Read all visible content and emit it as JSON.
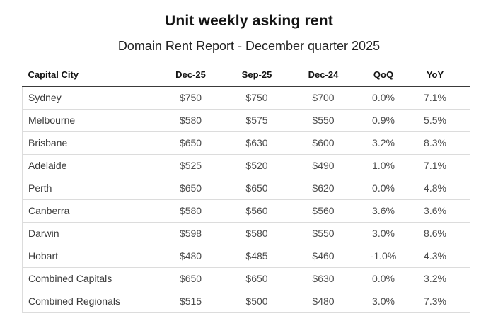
{
  "header": {
    "title": "Unit weekly asking rent",
    "subtitle": "Domain Rent Report - December quarter 2025"
  },
  "chart_data": {
    "type": "table",
    "title": "Unit weekly asking rent",
    "subtitle": "Domain Rent Report - December quarter 2025",
    "columns": [
      "Capital City",
      "Dec-25",
      "Sep-25",
      "Dec-24",
      "QoQ",
      "YoY"
    ],
    "rows": [
      [
        "Sydney",
        "$750",
        "$750",
        "$700",
        "0.0%",
        "7.1%"
      ],
      [
        "Melbourne",
        "$580",
        "$575",
        "$550",
        "0.9%",
        "5.5%"
      ],
      [
        "Brisbane",
        "$650",
        "$630",
        "$600",
        "3.2%",
        "8.3%"
      ],
      [
        "Adelaide",
        "$525",
        "$520",
        "$490",
        "1.0%",
        "7.1%"
      ],
      [
        "Perth",
        "$650",
        "$650",
        "$620",
        "0.0%",
        "4.8%"
      ],
      [
        "Canberra",
        "$580",
        "$560",
        "$560",
        "3.6%",
        "3.6%"
      ],
      [
        "Darwin",
        "$598",
        "$580",
        "$550",
        "3.0%",
        "8.6%"
      ],
      [
        "Hobart",
        "$480",
        "$485",
        "$460",
        "-1.0%",
        "4.3%"
      ],
      [
        "Combined Capitals",
        "$650",
        "$650",
        "$630",
        "0.0%",
        "3.2%"
      ],
      [
        "Combined Regionals",
        "$515",
        "$500",
        "$480",
        "3.0%",
        "7.3%"
      ]
    ],
    "layout_hints": {
      "header_rule": "heavy",
      "row_rules": "light",
      "first_column_align": "left",
      "value_columns_align": "center"
    }
  },
  "colors": {
    "background": "#ffffff",
    "title_text": "#141414",
    "subtitle_text": "#222222",
    "header_text": "#141414",
    "city_text": "#3a3a3a",
    "value_text": "#4b4b4b",
    "rule_heavy": "#3a3a3a",
    "rule_light": "#dcdcdc"
  }
}
